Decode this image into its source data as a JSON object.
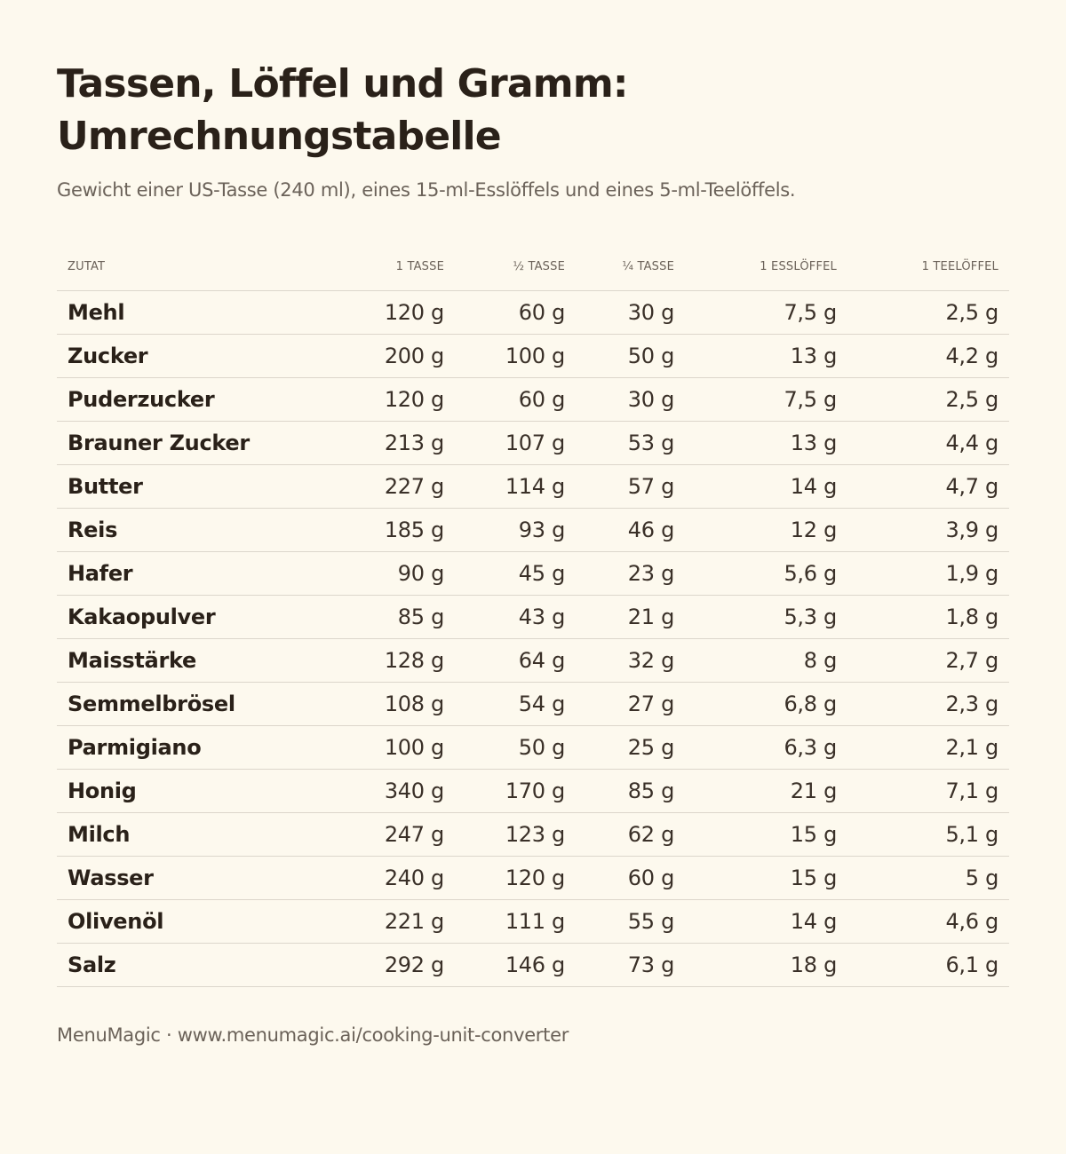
{
  "header": {
    "title_line1": "Tassen, Löffel und Gramm:",
    "title_line2": "Umrechnungstabelle",
    "subtitle": "Gewicht einer US-Tasse (240 ml), eines 15-ml-Esslöffels und eines 5-ml-Teelöffels."
  },
  "table": {
    "columns": [
      "Zutat",
      "1 Tasse",
      "½ Tasse",
      "¼ Tasse",
      "1 Esslöffel",
      "1 Teelöffel"
    ],
    "rows": [
      [
        "Mehl",
        "120 g",
        "60 g",
        "30 g",
        "7,5 g",
        "2,5 g"
      ],
      [
        "Zucker",
        "200 g",
        "100 g",
        "50 g",
        "13 g",
        "4,2 g"
      ],
      [
        "Puderzucker",
        "120 g",
        "60 g",
        "30 g",
        "7,5 g",
        "2,5 g"
      ],
      [
        "Brauner Zucker",
        "213 g",
        "107 g",
        "53 g",
        "13 g",
        "4,4 g"
      ],
      [
        "Butter",
        "227 g",
        "114 g",
        "57 g",
        "14 g",
        "4,7 g"
      ],
      [
        "Reis",
        "185 g",
        "93 g",
        "46 g",
        "12 g",
        "3,9 g"
      ],
      [
        "Hafer",
        "90 g",
        "45 g",
        "23 g",
        "5,6 g",
        "1,9 g"
      ],
      [
        "Kakaopulver",
        "85 g",
        "43 g",
        "21 g",
        "5,3 g",
        "1,8 g"
      ],
      [
        "Maisstärke",
        "128 g",
        "64 g",
        "32 g",
        "8 g",
        "2,7 g"
      ],
      [
        "Semmelbrösel",
        "108 g",
        "54 g",
        "27 g",
        "6,8 g",
        "2,3 g"
      ],
      [
        "Parmigiano",
        "100 g",
        "50 g",
        "25 g",
        "6,3 g",
        "2,1 g"
      ],
      [
        "Honig",
        "340 g",
        "170 g",
        "85 g",
        "21 g",
        "7,1 g"
      ],
      [
        "Milch",
        "247 g",
        "123 g",
        "62 g",
        "15 g",
        "5,1 g"
      ],
      [
        "Wasser",
        "240 g",
        "120 g",
        "60 g",
        "15 g",
        "5 g"
      ],
      [
        "Olivenöl",
        "221 g",
        "111 g",
        "55 g",
        "14 g",
        "4,6 g"
      ],
      [
        "Salz",
        "292 g",
        "146 g",
        "73 g",
        "18 g",
        "6,1 g"
      ]
    ]
  },
  "footer": {
    "text": "MenuMagic · www.menumagic.ai/cooking-unit-converter"
  },
  "colors": {
    "background": "#fdf9ee",
    "text": "#2a2119",
    "muted": "#6b6259",
    "rule": "#dcd6cb"
  }
}
